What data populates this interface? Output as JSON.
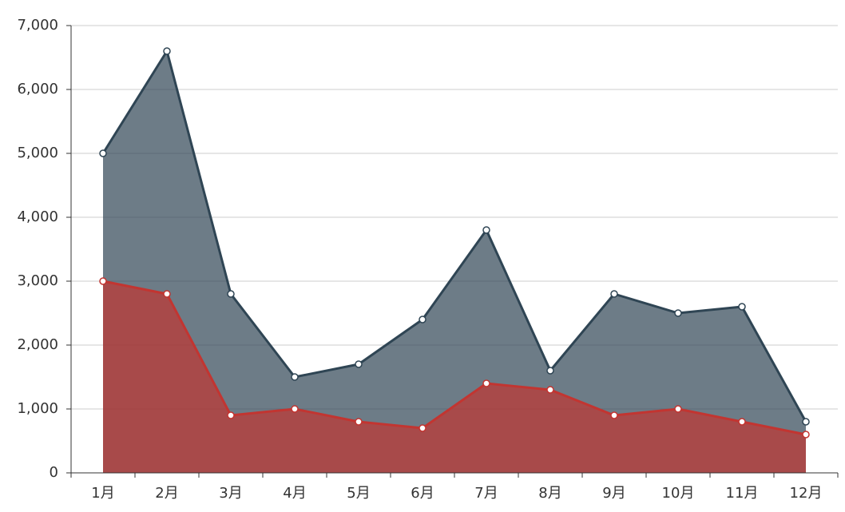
{
  "chart_data": {
    "type": "area",
    "categories": [
      "1月",
      "2月",
      "3月",
      "4月",
      "5月",
      "6月",
      "7月",
      "8月",
      "9月",
      "10月",
      "11月",
      "12月"
    ],
    "series": [
      {
        "color": "#2f4554",
        "values": [
          5000,
          6600,
          2800,
          1500,
          1700,
          2400,
          3800,
          1600,
          2800,
          2500,
          2600,
          800
        ]
      },
      {
        "color": "#c23531",
        "values": [
          3000,
          2800,
          900,
          1000,
          800,
          700,
          1400,
          1300,
          900,
          1000,
          800,
          600
        ]
      }
    ],
    "ylim": [
      0,
      7000
    ],
    "yticks": [
      0,
      {
        "value": 1000,
        "label": "1,000"
      },
      {
        "value": 2000,
        "label": "2,000"
      },
      {
        "value": 3000,
        "label": "3,000"
      },
      {
        "value": 4000,
        "label": "4,000"
      },
      {
        "value": 5000,
        "label": "5,000"
      },
      {
        "value": 6000,
        "label": "6,000"
      },
      {
        "value": 7000,
        "label": "7,000"
      }
    ],
    "grid": true
  }
}
